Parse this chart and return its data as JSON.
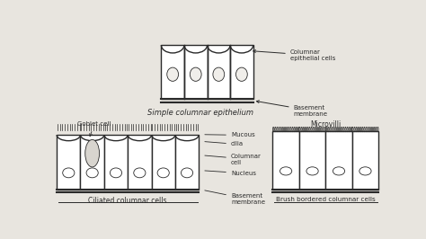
{
  "bg_color": "#e8e5df",
  "line_color": "#2a2a2a",
  "labels": {
    "columnar_epithelial_cells": "Columnar\nepithelial cells",
    "basement_membrane_top": "Basement\nmembrane",
    "simple_columnar": "Simple columnar epithelium",
    "goblet_cell": "Goblet cell",
    "mucous": "Mucous",
    "cilia_label": "cilia",
    "columnar_cell": "Columnar\ncell",
    "nucleus": "Nucleus",
    "basement_membrane_bot": "Basement\nmembrane",
    "ciliated_columnar": "Ciliated columnar cells",
    "microvilli": "Microvilli",
    "brush_bordered": "Brush bordered columnar cells"
  }
}
